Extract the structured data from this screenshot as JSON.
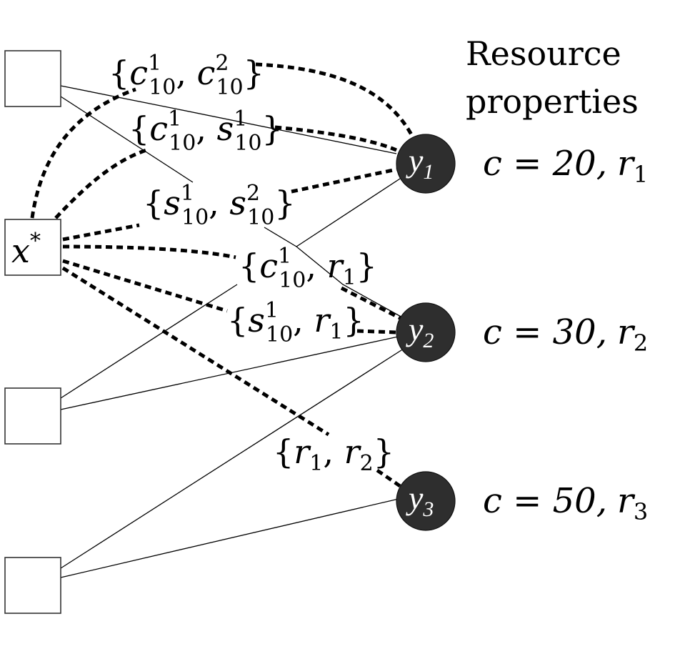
{
  "header": {
    "line1": "Resource",
    "line2": "properties"
  },
  "tasks": {
    "target": {
      "base": "x",
      "sup": "*"
    }
  },
  "resources": [
    {
      "sym": "y",
      "sub": "1",
      "prop_c": "c = 20,",
      "prop_r": "r",
      "prop_r_sub": "1"
    },
    {
      "sym": "y",
      "sub": "2",
      "prop_c": "c = 30,",
      "prop_r": "r",
      "prop_r_sub": "2"
    },
    {
      "sym": "y",
      "sub": "3",
      "prop_c": "c = 50,",
      "prop_r": "r",
      "prop_r_sub": "3"
    }
  ],
  "edge_labels": {
    "l1": {
      "a": "c",
      "a_sup": "1",
      "a_sub": "10",
      "b": "c",
      "b_sup": "2",
      "b_sub": "10"
    },
    "l2": {
      "a": "c",
      "a_sup": "1",
      "a_sub": "10",
      "b": "s",
      "b_sup": "1",
      "b_sub": "10"
    },
    "l3": {
      "a": "s",
      "a_sup": "1",
      "a_sub": "10",
      "b": "s",
      "b_sup": "2",
      "b_sub": "10"
    },
    "l4": {
      "a": "c",
      "a_sup": "1",
      "a_sub": "10",
      "b": "r",
      "b_sub": "1"
    },
    "l5": {
      "a": "s",
      "a_sup": "1",
      "a_sub": "10",
      "b": "r",
      "b_sub": "1"
    },
    "l6": {
      "a": "r",
      "a_sub": "1",
      "b": "r",
      "b_sub": "2"
    }
  }
}
